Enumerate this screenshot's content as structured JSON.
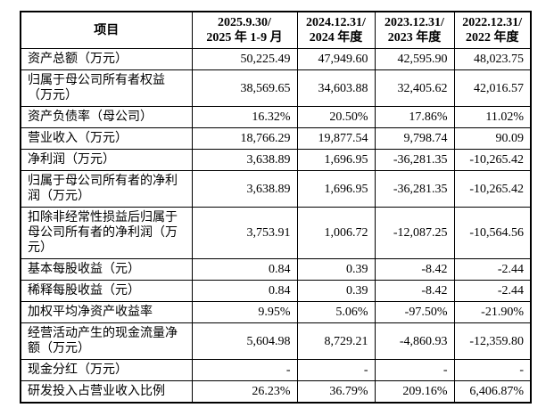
{
  "table": {
    "name": "financial-summary",
    "columns": [
      {
        "id": "item",
        "lines": [
          "项目"
        ]
      },
      {
        "id": "period-2025",
        "lines": [
          "2025.9.30/",
          "2025 年 1-9 月"
        ]
      },
      {
        "id": "period-2024",
        "lines": [
          "2024.12.31/",
          "2024 年度"
        ]
      },
      {
        "id": "period-2023",
        "lines": [
          "2023.12.31/",
          "2023 年度"
        ]
      },
      {
        "id": "period-2022",
        "lines": [
          "2022.12.31/",
          "2022 年度"
        ]
      }
    ],
    "rows": [
      {
        "label": "资产总额（万元）",
        "values": [
          "50,225.49",
          "47,949.60",
          "42,595.90",
          "48,023.75"
        ]
      },
      {
        "label": "归属于母公司所有者权益（万元）",
        "values": [
          "38,569.65",
          "34,603.88",
          "32,405.62",
          "42,016.57"
        ]
      },
      {
        "label": "资产负债率（母公司）",
        "values": [
          "16.32%",
          "20.50%",
          "17.86%",
          "11.02%"
        ]
      },
      {
        "label": "营业收入（万元）",
        "values": [
          "18,766.29",
          "19,877.54",
          "9,798.74",
          "90.09"
        ]
      },
      {
        "label": "净利润（万元）",
        "values": [
          "3,638.89",
          "1,696.95",
          "-36,281.35",
          "-10,265.42"
        ]
      },
      {
        "label": "归属于母公司所有者的净利润（万元）",
        "values": [
          "3,638.89",
          "1,696.95",
          "-36,281.35",
          "-10,265.42"
        ]
      },
      {
        "label": "扣除非经常性损益后归属于母公司所有者的净利润（万元）",
        "values": [
          "3,753.91",
          "1,006.72",
          "-12,087.25",
          "-10,564.56"
        ]
      },
      {
        "label": "基本每股收益（元）",
        "values": [
          "0.84",
          "0.39",
          "-8.42",
          "-2.44"
        ]
      },
      {
        "label": "稀释每股收益（元）",
        "values": [
          "0.84",
          "0.39",
          "-8.42",
          "-2.44"
        ]
      },
      {
        "label": "加权平均净资产收益率",
        "values": [
          "9.95%",
          "5.06%",
          "-97.50%",
          "-21.90%"
        ]
      },
      {
        "label": "经营活动产生的现金流量净额（万元）",
        "values": [
          "5,604.98",
          "8,729.21",
          "-4,860.93",
          "-12,359.80"
        ]
      },
      {
        "label": "现金分红（万元）",
        "values": [
          "-",
          "-",
          "-",
          "-"
        ]
      },
      {
        "label": "研发投入占营业收入比例",
        "values": [
          "26.23%",
          "36.79%",
          "209.16%",
          "6,406.87%"
        ]
      }
    ]
  },
  "colors": {
    "border": "#000000",
    "text": "#000000",
    "background": "#ffffff"
  }
}
